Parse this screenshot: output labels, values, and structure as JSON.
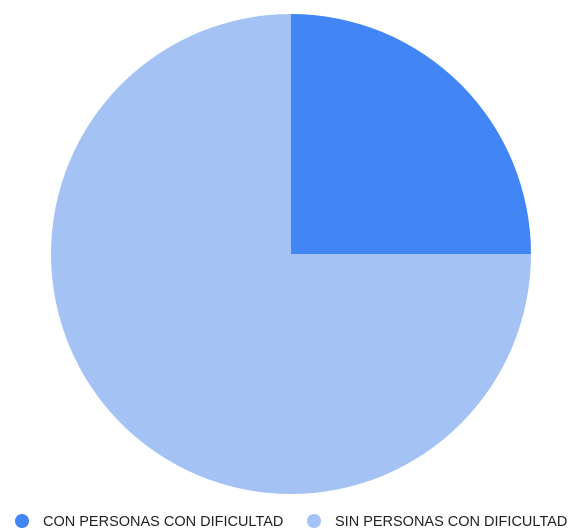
{
  "chart_data": {
    "type": "pie",
    "title": "",
    "slices": [
      {
        "label": "CON PERSONAS CON DIFICULTAD",
        "value": 25,
        "color": "#4285f4"
      },
      {
        "label": "SIN PERSONAS CON DIFICULTAD",
        "value": 75,
        "color": "#a4c2f4"
      }
    ],
    "legend_position": "bottom",
    "start_angle": "12 o'clock, clockwise"
  }
}
